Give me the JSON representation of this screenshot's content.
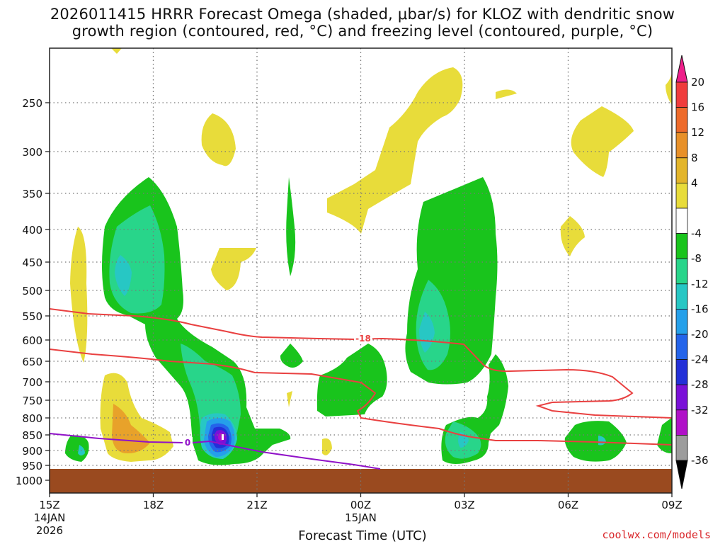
{
  "title_line1": "2026011415 HRRR Forecast Omega (shaded, μbar/s) for KLOZ with dendritic snow",
  "title_line2": "growth region (contoured, red, °C) and freezing level (contoured, purple, °C)",
  "credit": "coolwx.com/models",
  "chart_data": {
    "type": "heatmap",
    "title": "2026011415 HRRR Forecast Omega (shaded, μbar/s) for KLOZ with dendritic snow growth region (contoured, red, °C) and freezing level (contoured, purple, °C)",
    "xlabel": "Forecast Time (UTC)",
    "ylabel": "",
    "x_ticks": [
      {
        "label": "15Z",
        "sub1": "14JAN",
        "sub2": "2026",
        "hours": 0
      },
      {
        "label": "18Z",
        "sub1": "",
        "sub2": "",
        "hours": 3
      },
      {
        "label": "21Z",
        "sub1": "",
        "sub2": "",
        "hours": 6
      },
      {
        "label": "00Z",
        "sub1": "15JAN",
        "sub2": "",
        "hours": 9
      },
      {
        "label": "03Z",
        "sub1": "",
        "sub2": "",
        "hours": 12
      },
      {
        "label": "06Z",
        "sub1": "",
        "sub2": "",
        "hours": 15
      },
      {
        "label": "09Z",
        "sub1": "",
        "sub2": "",
        "hours": 18
      }
    ],
    "y_ticks": [
      "250",
      "300",
      "350",
      "400",
      "450",
      "500",
      "550",
      "600",
      "650",
      "700",
      "750",
      "800",
      "850",
      "900",
      "950",
      "1000"
    ],
    "y_units": "hPa",
    "colorbar": {
      "labels": [
        "20",
        "16",
        "12",
        "8",
        "4",
        "-4",
        "-8",
        "-12",
        "-16",
        "-20",
        "-24",
        "-28",
        "-32",
        "-36"
      ],
      "colors": [
        "#ee1f8a",
        "#f03c3c",
        "#ee6a2a",
        "#e89028",
        "#e3b52a",
        "#e8dc3a",
        "#ffffff",
        "#19c41c",
        "#28d58a",
        "#27c7c4",
        "#25a0ea",
        "#2464ea",
        "#2330d8",
        "#7a10d8",
        "#b010c8",
        "#9c9c9c",
        "#000000"
      ]
    },
    "contours": {
      "dgz_label": "-18",
      "freezing_label": "0"
    }
  }
}
